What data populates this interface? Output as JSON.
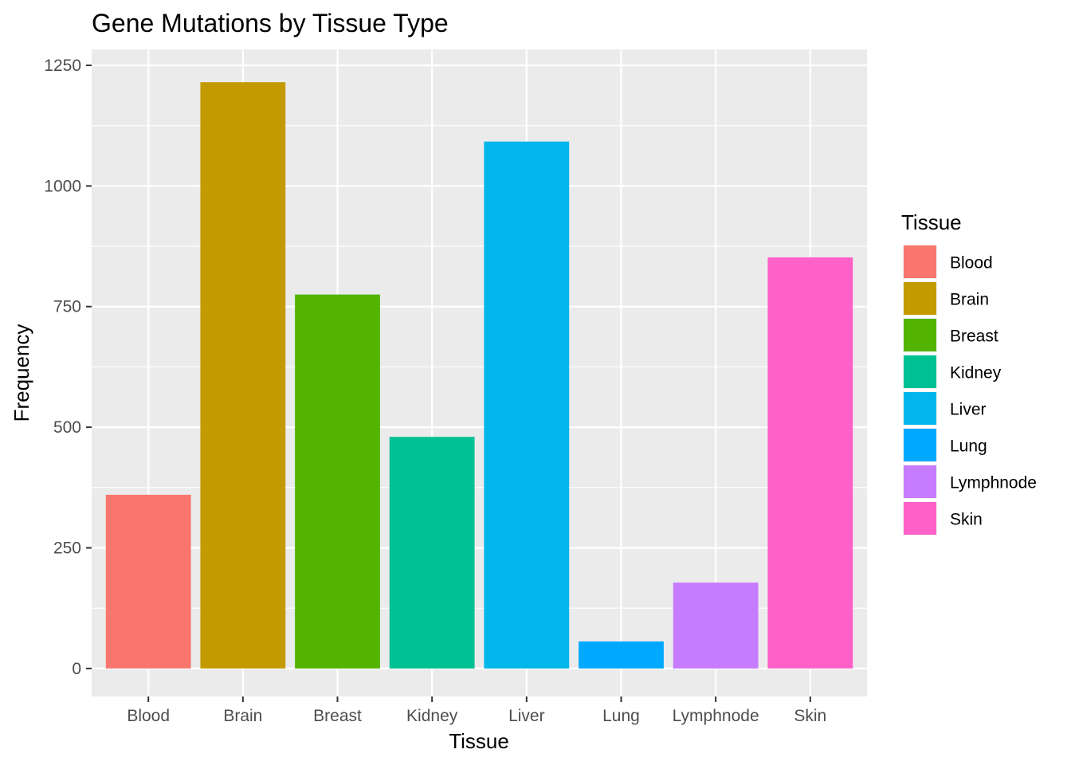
{
  "chart_data": {
    "type": "bar",
    "title": "Gene Mutations by Tissue Type",
    "xlabel": "Tissue",
    "ylabel": "Frequency",
    "categories": [
      "Blood",
      "Brain",
      "Breast",
      "Kidney",
      "Liver",
      "Lung",
      "Lymphnode",
      "Skin"
    ],
    "values": [
      360,
      1215,
      775,
      480,
      1092,
      56,
      178,
      852
    ],
    "colors": [
      "#F8766D",
      "#C49A00",
      "#53B400",
      "#00C094",
      "#00B6EB",
      "#00A9FF",
      "#C77CFF",
      "#FF61C9"
    ],
    "ylim": [
      -58,
      1283
    ],
    "yticks": [
      0,
      250,
      500,
      750,
      1000,
      1250
    ],
    "ytick_labels": [
      "0",
      "250",
      "500",
      "750",
      "1000",
      "1250"
    ],
    "grid": true,
    "panel_background": "#EBEBEB",
    "legend": {
      "title": "Tissue",
      "position": "right",
      "entries": [
        "Blood",
        "Brain",
        "Breast",
        "Kidney",
        "Liver",
        "Lung",
        "Lymphnode",
        "Skin"
      ]
    }
  }
}
